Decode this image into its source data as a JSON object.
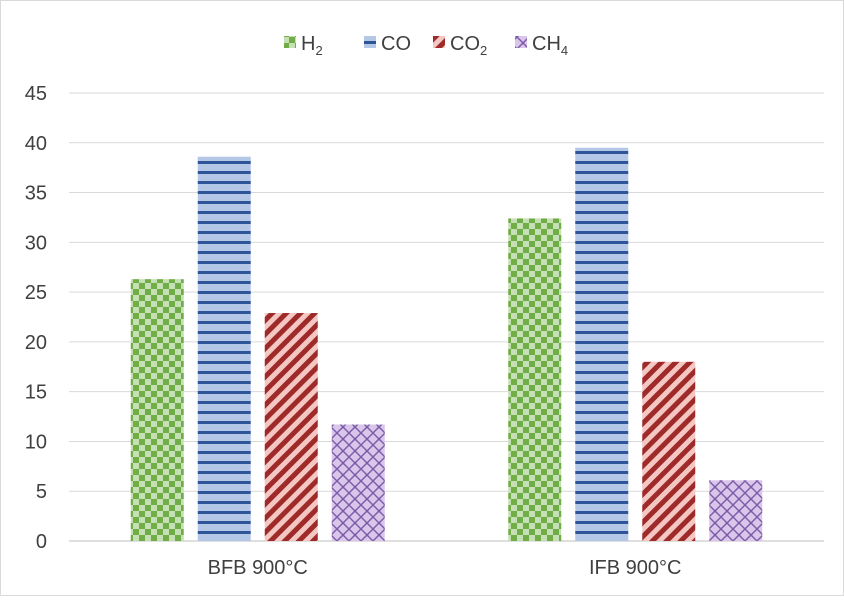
{
  "chart_data": {
    "type": "bar",
    "categories": [
      "BFB 900°C",
      "IFB 900°C"
    ],
    "series": [
      {
        "name": "H2",
        "label_main": "H",
        "label_sub": "2",
        "color": "#70ad47",
        "pattern": "checkerboard",
        "values": [
          26.3,
          32.4
        ]
      },
      {
        "name": "CO",
        "label_main": "CO",
        "label_sub": "",
        "color": "#2e5597",
        "pattern": "horizontal-lines",
        "values": [
          38.6,
          39.5
        ]
      },
      {
        "name": "CO2",
        "label_main": "CO",
        "label_sub": "2",
        "color": "#9e2a2a",
        "pattern": "diagonal-stripes",
        "values": [
          22.9,
          18.0
        ]
      },
      {
        "name": "CH4",
        "label_main": "CH",
        "label_sub": "4",
        "color": "#7b5aa6",
        "pattern": "diamond-lattice",
        "values": [
          11.7,
          6.1
        ]
      }
    ],
    "ylim": [
      0,
      45
    ],
    "yticks": [
      0,
      5,
      10,
      15,
      20,
      25,
      30,
      35,
      40,
      45
    ],
    "grid": true,
    "legend_position": "top-center",
    "title": "",
    "xlabel": "",
    "ylabel": ""
  }
}
